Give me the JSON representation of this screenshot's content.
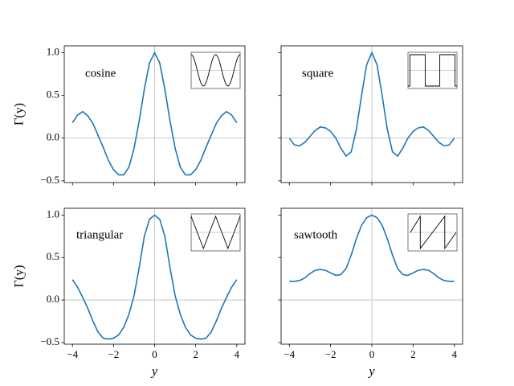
{
  "chart_data": [
    {
      "type": "line",
      "label": "cosine",
      "ylabel": "Γ(y)",
      "color": "#1f77b4",
      "x": [
        -4,
        -3.75,
        -3.5,
        -3.25,
        -3,
        -2.75,
        -2.5,
        -2.25,
        -2,
        -1.75,
        -1.5,
        -1.25,
        -1,
        -0.75,
        -0.5,
        -0.25,
        0,
        0.25,
        0.5,
        0.75,
        1,
        1.25,
        1.5,
        1.75,
        2,
        2.25,
        2.5,
        2.75,
        3,
        3.25,
        3.5,
        3.75,
        4
      ],
      "values": [
        0.18,
        0.27,
        0.31,
        0.26,
        0.17,
        0.03,
        -0.11,
        -0.26,
        -0.37,
        -0.43,
        -0.43,
        -0.34,
        -0.12,
        0.2,
        0.57,
        0.88,
        1.0,
        0.88,
        0.57,
        0.2,
        -0.12,
        -0.34,
        -0.43,
        -0.43,
        -0.37,
        -0.26,
        -0.11,
        0.03,
        0.17,
        0.26,
        0.31,
        0.27,
        0.18
      ],
      "xlim": [
        -4.4,
        4.4
      ],
      "ylim": [
        -0.52,
        1.08
      ],
      "xticks": [
        -4,
        -2,
        0,
        2,
        4
      ],
      "show_xtick_labels": false,
      "yticks": [
        {
          "value": -0.5,
          "label": "−0.5"
        },
        {
          "value": 0,
          "label": "0.0"
        },
        0.5,
        {
          "value": 1,
          "label": "1.0"
        }
      ],
      "show_ytick_labels": true,
      "hline": 0,
      "vline": 0
    },
    {
      "type": "line",
      "label": "square",
      "color": "#1f77b4",
      "x": [
        -4,
        -3.75,
        -3.5,
        -3.25,
        -3,
        -2.75,
        -2.5,
        -2.25,
        -2,
        -1.75,
        -1.5,
        -1.25,
        -1,
        -0.75,
        -0.5,
        -0.25,
        0,
        0.25,
        0.5,
        0.75,
        1,
        1.25,
        1.5,
        1.75,
        2,
        2.25,
        2.5,
        2.75,
        3,
        3.25,
        3.5,
        3.75,
        4
      ],
      "values": [
        0.0,
        -0.08,
        -0.09,
        -0.05,
        0.02,
        0.09,
        0.13,
        0.12,
        0.08,
        0.0,
        -0.12,
        -0.21,
        -0.16,
        0.1,
        0.5,
        0.86,
        1.0,
        0.86,
        0.5,
        0.1,
        -0.16,
        -0.21,
        -0.12,
        0.0,
        0.08,
        0.12,
        0.13,
        0.09,
        0.02,
        -0.05,
        -0.09,
        -0.08,
        0.0
      ],
      "xlim": [
        -4.4,
        4.4
      ],
      "ylim": [
        -0.52,
        1.08
      ],
      "xticks": [
        -4,
        -2,
        0,
        2,
        4
      ],
      "show_xtick_labels": false,
      "yticks": [
        -0.5,
        0,
        0.5,
        1
      ],
      "show_ytick_labels": false,
      "hline": 0,
      "vline": 0
    },
    {
      "type": "line",
      "label": "triangular",
      "ylabel": "Γ(y)",
      "xlabel": "y",
      "color": "#1f77b4",
      "x": [
        -4,
        -3.75,
        -3.5,
        -3.25,
        -3,
        -2.75,
        -2.5,
        -2.25,
        -2,
        -1.75,
        -1.5,
        -1.25,
        -1,
        -0.75,
        -0.5,
        -0.25,
        0,
        0.25,
        0.5,
        0.75,
        1,
        1.25,
        1.5,
        1.75,
        2,
        2.25,
        2.5,
        2.75,
        3,
        3.25,
        3.5,
        3.75,
        4
      ],
      "values": [
        0.24,
        0.15,
        0.03,
        -0.1,
        -0.25,
        -0.38,
        -0.45,
        -0.46,
        -0.45,
        -0.41,
        -0.32,
        -0.17,
        0.05,
        0.38,
        0.75,
        0.95,
        1.0,
        0.95,
        0.75,
        0.38,
        0.05,
        -0.17,
        -0.32,
        -0.41,
        -0.45,
        -0.46,
        -0.45,
        -0.38,
        -0.25,
        -0.1,
        0.03,
        0.15,
        0.24
      ],
      "xlim": [
        -4.4,
        4.4
      ],
      "ylim": [
        -0.52,
        1.08
      ],
      "xticks": [
        {
          "value": -4,
          "label": "−4"
        },
        {
          "value": -2,
          "label": "−2"
        },
        0,
        2,
        4
      ],
      "show_xtick_labels": true,
      "yticks": [
        {
          "value": -0.5,
          "label": "−0.5"
        },
        {
          "value": 0,
          "label": "0.0"
        },
        0.5,
        {
          "value": 1,
          "label": "1.0"
        }
      ],
      "show_ytick_labels": true,
      "hline": 0,
      "vline": 0
    },
    {
      "type": "line",
      "label": "sawtooth",
      "xlabel": "y",
      "color": "#1f77b4",
      "x": [
        -4,
        -3.75,
        -3.5,
        -3.25,
        -3,
        -2.75,
        -2.5,
        -2.25,
        -2,
        -1.75,
        -1.5,
        -1.25,
        -1,
        -0.75,
        -0.5,
        -0.25,
        0,
        0.25,
        0.5,
        0.75,
        1,
        1.25,
        1.5,
        1.75,
        2,
        2.25,
        2.5,
        2.75,
        3,
        3.25,
        3.5,
        3.75,
        4
      ],
      "values": [
        0.22,
        0.22,
        0.23,
        0.26,
        0.31,
        0.35,
        0.36,
        0.35,
        0.32,
        0.29,
        0.3,
        0.37,
        0.53,
        0.72,
        0.88,
        0.97,
        1.0,
        0.97,
        0.88,
        0.72,
        0.53,
        0.37,
        0.3,
        0.29,
        0.32,
        0.35,
        0.36,
        0.35,
        0.31,
        0.26,
        0.23,
        0.22,
        0.22
      ],
      "xlim": [
        -4.4,
        4.4
      ],
      "ylim": [
        -0.52,
        1.08
      ],
      "xticks": [
        {
          "value": -4,
          "label": "−4"
        },
        {
          "value": -2,
          "label": "−2"
        },
        0,
        2,
        4
      ],
      "show_xtick_labels": true,
      "yticks": [
        -0.5,
        0,
        0.5,
        1
      ],
      "show_ytick_labels": false,
      "hline": 0,
      "vline": 0
    }
  ]
}
